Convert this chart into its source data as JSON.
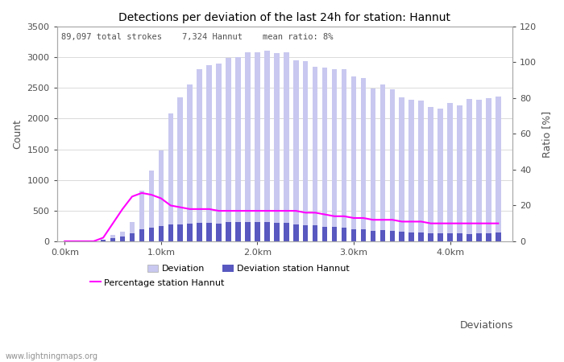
{
  "title": "Detections per deviation of the last 24h for station: Hannut",
  "subtitle": "89,097 total strokes    7,324 Hannut    mean ratio: 8%",
  "xlabel": "Deviations",
  "ylabel_left": "Count",
  "ylabel_right": "Ratio [%]",
  "watermark": "www.lightningmaps.org",
  "ylim_left": [
    0,
    3500
  ],
  "ylim_right": [
    0,
    120
  ],
  "yticks_left": [
    0,
    500,
    1000,
    1500,
    2000,
    2500,
    3000,
    3500
  ],
  "yticks_right": [
    0,
    20,
    40,
    60,
    80,
    100,
    120
  ],
  "x_tick_labels": [
    "0.0km",
    "1.0km",
    "2.0km",
    "3.0km",
    "4.0km"
  ],
  "x_tick_positions": [
    0.0,
    1.0,
    2.0,
    3.0,
    4.0
  ],
  "deviation_total": [
    5,
    8,
    12,
    18,
    30,
    110,
    150,
    310,
    830,
    1150,
    1480,
    2080,
    2340,
    2560,
    2800,
    2870,
    2890,
    2990,
    3000,
    3080,
    3080,
    3100,
    3070,
    3080,
    2950,
    2940,
    2840,
    2830,
    2810,
    2810,
    2680,
    2660,
    2490,
    2560,
    2480,
    2340,
    2310,
    2290,
    2190,
    2160,
    2250,
    2220,
    2320,
    2310,
    2330,
    2360
  ],
  "deviation_station": [
    3,
    5,
    8,
    10,
    20,
    50,
    80,
    130,
    200,
    220,
    250,
    270,
    280,
    290,
    300,
    300,
    290,
    310,
    310,
    310,
    310,
    310,
    305,
    300,
    280,
    260,
    260,
    240,
    230,
    220,
    200,
    195,
    165,
    185,
    175,
    155,
    140,
    140,
    130,
    130,
    130,
    125,
    120,
    125,
    130,
    140
  ],
  "percentage": [
    0,
    0,
    0,
    0,
    2,
    10,
    18,
    25,
    27,
    26,
    24,
    20,
    19,
    18,
    18,
    18,
    17,
    17,
    17,
    17,
    17,
    17,
    17,
    17,
    17,
    16,
    16,
    15,
    14,
    14,
    13,
    13,
    12,
    12,
    12,
    11,
    11,
    11,
    10,
    10,
    10,
    10,
    10,
    10,
    10,
    10
  ],
  "color_total": "#c8c8f0",
  "color_station": "#5858c0",
  "color_percentage": "#ff00ff",
  "background_color": "#ffffff",
  "grid_color": "#cccccc",
  "text_color": "#505050",
  "num_bars": 46,
  "x_start": 0.0,
  "x_step": 0.1,
  "bar_width": 0.055
}
